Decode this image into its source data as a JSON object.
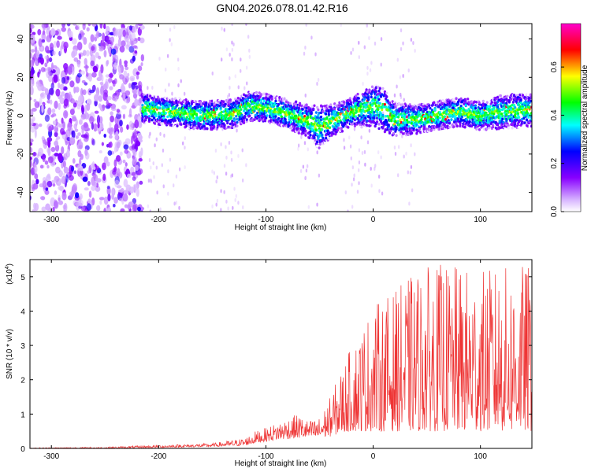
{
  "title": "GN04.2026.078.01.42.R16",
  "chart_data": [
    {
      "type": "heatmap",
      "xlabel": "Height of straight line (km)",
      "ylabel": "Frequency (Hz)",
      "xlim": [
        -320,
        148
      ],
      "ylim": [
        -50,
        48
      ],
      "xticks": [
        -300,
        -200,
        -100,
        0,
        100
      ],
      "yticks": [
        -40,
        -20,
        0,
        20,
        40
      ],
      "colorbar": {
        "label": "Normalized spectral amplitude",
        "range": [
          0.0,
          0.78
        ],
        "ticks": [
          0.0,
          0.2,
          0.4,
          0.6
        ],
        "tick_labels": [
          "0.0",
          "0.2",
          "0.4",
          "0.6"
        ]
      },
      "noise_region_x": [
        -320,
        -215
      ],
      "ridge": {
        "x": [
          -215,
          -190,
          -160,
          -130,
          -115,
          -100,
          -80,
          -60,
          -50,
          -40,
          -20,
          0,
          10,
          20,
          40,
          60,
          80,
          100,
          120,
          148
        ],
        "freq": [
          4,
          2,
          0,
          1,
          5,
          4,
          1,
          -3,
          -6,
          -3,
          2,
          5,
          3,
          -2,
          -2,
          0,
          2,
          0,
          2,
          3
        ],
        "half_width": [
          6,
          6,
          6,
          6,
          6,
          6,
          6,
          7,
          9,
          7,
          6,
          9,
          9,
          7,
          6,
          6,
          6,
          6,
          7,
          7
        ]
      }
    },
    {
      "type": "line",
      "xlabel": "Height of straight line (km)",
      "ylabel": "SNR (10 * v/v)",
      "scale_label": "(x10",
      "scale_exp": "4",
      "scale_close": ")",
      "xlim": [
        -320,
        148
      ],
      "ylim": [
        0,
        5.5
      ],
      "xticks": [
        -300,
        -200,
        -100,
        0,
        100
      ],
      "yticks": [
        0,
        1,
        2,
        3,
        4,
        5
      ],
      "series": [
        {
          "name": "SNR",
          "color": "#ee3333",
          "envelope": {
            "x": [
              -320,
              -250,
              -200,
              -150,
              -120,
              -110,
              -100,
              -90,
              -80,
              -70,
              -60,
              -50,
              -40,
              -30,
              -20,
              -10,
              0,
              20,
              40,
              60,
              80,
              100,
              120,
              148
            ],
            "base": [
              0.0,
              0.0,
              0.02,
              0.05,
              0.08,
              0.15,
              0.2,
              0.25,
              0.28,
              0.3,
              0.32,
              0.3,
              0.35,
              0.45,
              0.5,
              0.5,
              0.5,
              0.5,
              0.5,
              0.5,
              0.5,
              0.5,
              0.5,
              0.5
            ],
            "peak": [
              0.02,
              0.04,
              0.1,
              0.15,
              0.3,
              0.5,
              0.6,
              0.75,
              0.9,
              1.0,
              0.8,
              0.9,
              1.5,
              2.3,
              3.0,
              3.6,
              4.2,
              4.6,
              5.2,
              5.4,
              5.3,
              5.2,
              5.3,
              5.4
            ]
          }
        }
      ]
    }
  ]
}
